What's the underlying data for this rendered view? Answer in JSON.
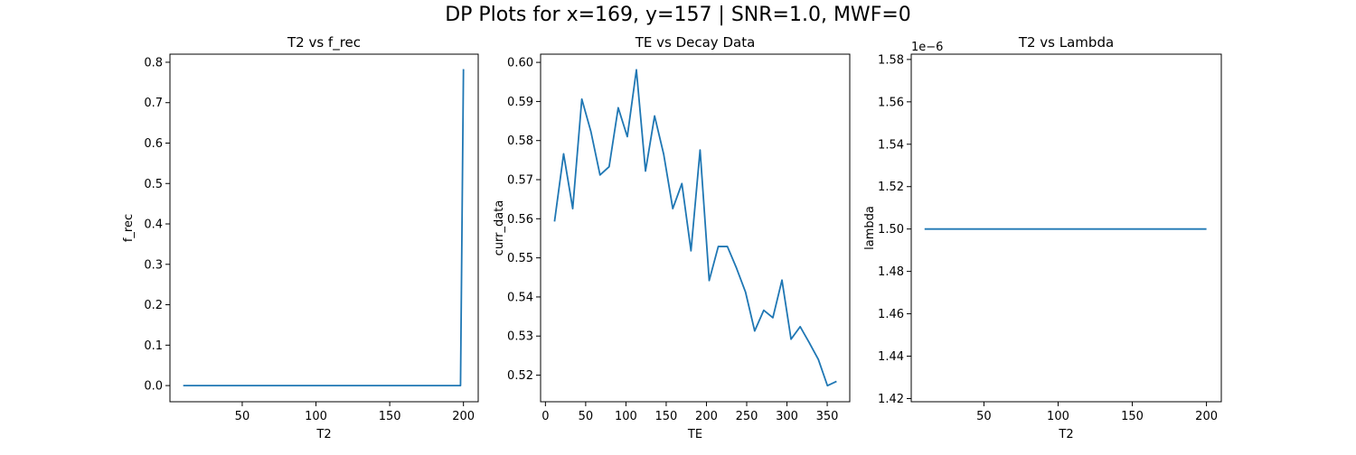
{
  "suptitle": "DP Plots for x=169, y=157 | SNR=1.0, MWF=0",
  "colors": {
    "line": "#1f77b4",
    "axes": "#000000",
    "background": "#ffffff"
  },
  "chart_data": [
    {
      "type": "line",
      "title": "T2 vs f_rec",
      "xlabel": "T2",
      "ylabel": "f_rec",
      "xlim": [
        1,
        210
      ],
      "ylim": [
        -0.04,
        0.82
      ],
      "xticks": [
        50,
        100,
        150,
        200
      ],
      "xtick_labels": [
        "50",
        "100",
        "150",
        "200"
      ],
      "yticks": [
        0.0,
        0.1,
        0.2,
        0.3,
        0.4,
        0.5,
        0.6,
        0.7,
        0.8
      ],
      "ytick_labels": [
        "0.0",
        "0.1",
        "0.2",
        "0.3",
        "0.4",
        "0.5",
        "0.6",
        "0.7",
        "0.8"
      ],
      "offset_text": "",
      "series": [
        {
          "name": "f_rec",
          "x": [
            10,
            50,
            100,
            150,
            198,
            200
          ],
          "y": [
            0,
            0,
            0,
            0,
            0,
            0.783
          ]
        }
      ]
    },
    {
      "type": "line",
      "title": "TE vs Decay Data",
      "xlabel": "TE",
      "ylabel": "curr_data",
      "xlim": [
        -6,
        378
      ],
      "ylim": [
        0.5132,
        0.6021
      ],
      "xticks": [
        0,
        50,
        100,
        150,
        200,
        250,
        300,
        350
      ],
      "xtick_labels": [
        "0",
        "50",
        "100",
        "150",
        "200",
        "250",
        "300",
        "350"
      ],
      "yticks": [
        0.52,
        0.53,
        0.54,
        0.55,
        0.56,
        0.57,
        0.58,
        0.59,
        0.6
      ],
      "ytick_labels": [
        "0.52",
        "0.53",
        "0.54",
        "0.55",
        "0.56",
        "0.57",
        "0.58",
        "0.59",
        "0.60"
      ],
      "offset_text": "",
      "series": [
        {
          "name": "curr_data",
          "x": [
            11.3,
            22.6,
            33.9,
            45.2,
            56.5,
            67.8,
            79.1,
            90.4,
            101.7,
            113,
            124.3,
            135.6,
            146.9,
            158.2,
            169.5,
            180.8,
            192.1,
            203.4,
            214.7,
            226,
            237.3,
            248.6,
            259.9,
            271.2,
            282.5,
            293.8,
            305.1,
            316.4,
            327.7,
            339,
            350.3,
            361.6
          ],
          "y": [
            0.5593,
            0.5766,
            0.5626,
            0.5906,
            0.5823,
            0.5712,
            0.5733,
            0.5884,
            0.581,
            0.5981,
            0.5722,
            0.5863,
            0.5765,
            0.5626,
            0.569,
            0.5518,
            0.5776,
            0.5442,
            0.5529,
            0.5529,
            0.5474,
            0.5412,
            0.5313,
            0.5366,
            0.5347,
            0.5443,
            0.5292,
            0.5324,
            0.5283,
            0.524,
            0.5173,
            0.5184
          ]
        }
      ]
    },
    {
      "type": "line",
      "title": "T2 vs Lambda",
      "xlabel": "T2",
      "ylabel": "lambda",
      "xlim": [
        1,
        210
      ],
      "ylim": [
        1.4185,
        1.5825
      ],
      "xticks": [
        50,
        100,
        150,
        200
      ],
      "xtick_labels": [
        "50",
        "100",
        "150",
        "200"
      ],
      "yticks": [
        1.42,
        1.44,
        1.46,
        1.48,
        1.5,
        1.52,
        1.54,
        1.56,
        1.58
      ],
      "ytick_labels": [
        "1.42",
        "1.44",
        "1.46",
        "1.48",
        "1.50",
        "1.52",
        "1.54",
        "1.56",
        "1.58"
      ],
      "offset_text": "1e−6",
      "series": [
        {
          "name": "lambda",
          "x": [
            10,
            200
          ],
          "y": [
            1.5,
            1.5
          ]
        }
      ]
    }
  ]
}
